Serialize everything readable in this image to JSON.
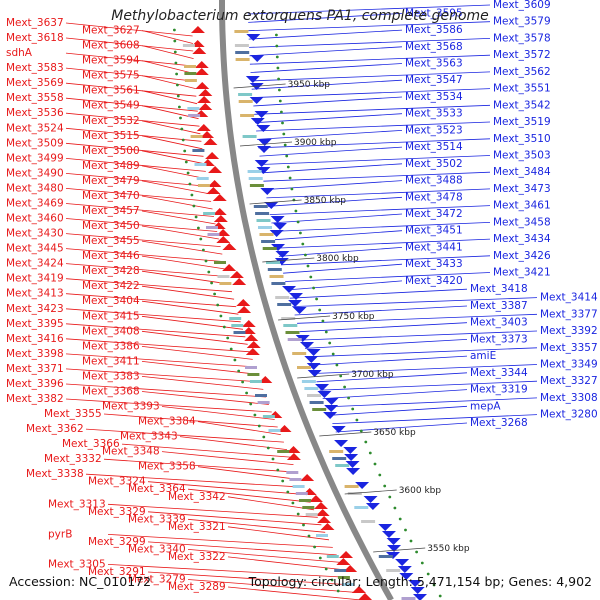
{
  "title": "Methylobacterium extorquens PA1, complete genome",
  "accession": "Accession: NC_010172",
  "topology": "Topology: circular; Length: 5,471,154 bp; Genes: 4,902",
  "colors": {
    "forward": "#e8191a",
    "reverse": "#1a25e0",
    "backbone": "#888888",
    "tick_dot": "#2e8b2e"
  },
  "ticks": [
    "3950 kbp",
    "3900 kbp",
    "3850 kbp",
    "3800 kbp",
    "3750 kbp",
    "3700 kbp",
    "3650 kbp",
    "3600 kbp",
    "3550 kbp"
  ],
  "left_labels": [
    "Mext_3637",
    "Mext_3627",
    "Mext_3618",
    "Mext_3608",
    "sdhA",
    "Mext_3594",
    "Mext_3583",
    "Mext_3575",
    "Mext_3569",
    "Mext_3561",
    "Mext_3558",
    "Mext_3549",
    "Mext_3536",
    "Mext_3532",
    "Mext_3524",
    "Mext_3515",
    "Mext_3509",
    "Mext_3500",
    "Mext_3499",
    "Mext_3489",
    "Mext_3490",
    "Mext_3479",
    "Mext_3480",
    "Mext_3470",
    "Mext_3469",
    "Mext_3457",
    "Mext_3460",
    "Mext_3450",
    "Mext_3430",
    "Mext_3455",
    "Mext_3445",
    "Mext_3446",
    "Mext_3424",
    "Mext_3428",
    "Mext_3419",
    "Mext_3422",
    "Mext_3413",
    "Mext_3404",
    "Mext_3423",
    "Mext_3415",
    "Mext_3395",
    "Mext_3408",
    "Mext_3416",
    "Mext_3386",
    "Mext_3398",
    "Mext_3411",
    "Mext_3371",
    "Mext_3383",
    "Mext_3396",
    "Mext_3368",
    "Mext_3382",
    "Mext_3393",
    "Mext_3355",
    "Mext_3384",
    "Mext_3362",
    "Mext_3343",
    "Mext_3366",
    "Mext_3348",
    "Mext_3332",
    "Mext_3358",
    "Mext_3338",
    "Mext_3324",
    "Mext_3364",
    "Mext_3342",
    "Mext_3313",
    "Mext_3329",
    "Mext_3339",
    "Mext_3321",
    "pyrB",
    "Mext_3299",
    "Mext_3340",
    "Mext_3322",
    "Mext_3305",
    "Mext_3291",
    "Mext_3279",
    "Mext_3289"
  ],
  "right_labels": [
    "Mext_3609",
    "Mext_3595",
    "Mext_3579",
    "Mext_3586",
    "Mext_3578",
    "Mext_3568",
    "Mext_3572",
    "Mext_3563",
    "Mext_3562",
    "Mext_3547",
    "Mext_3551",
    "Mext_3534",
    "Mext_3542",
    "Mext_3533",
    "Mext_3519",
    "Mext_3523",
    "Mext_3510",
    "Mext_3514",
    "Mext_3503",
    "Mext_3502",
    "Mext_3484",
    "Mext_3488",
    "Mext_3473",
    "Mext_3478",
    "Mext_3461",
    "Mext_3472",
    "Mext_3458",
    "Mext_3451",
    "Mext_3434",
    "Mext_3441",
    "Mext_3426",
    "Mext_3433",
    "Mext_3421",
    "Mext_3420",
    "Mext_3418",
    "Mext_3414",
    "Mext_3387",
    "Mext_3377",
    "Mext_3403",
    "Mext_3392",
    "Mext_3373",
    "Mext_3357",
    "amiE",
    "Mext_3349",
    "Mext_3344",
    "Mext_3327",
    "Mext_3319",
    "Mext_3308",
    "mepA",
    "Mext_3280",
    "Mext_3268"
  ]
}
